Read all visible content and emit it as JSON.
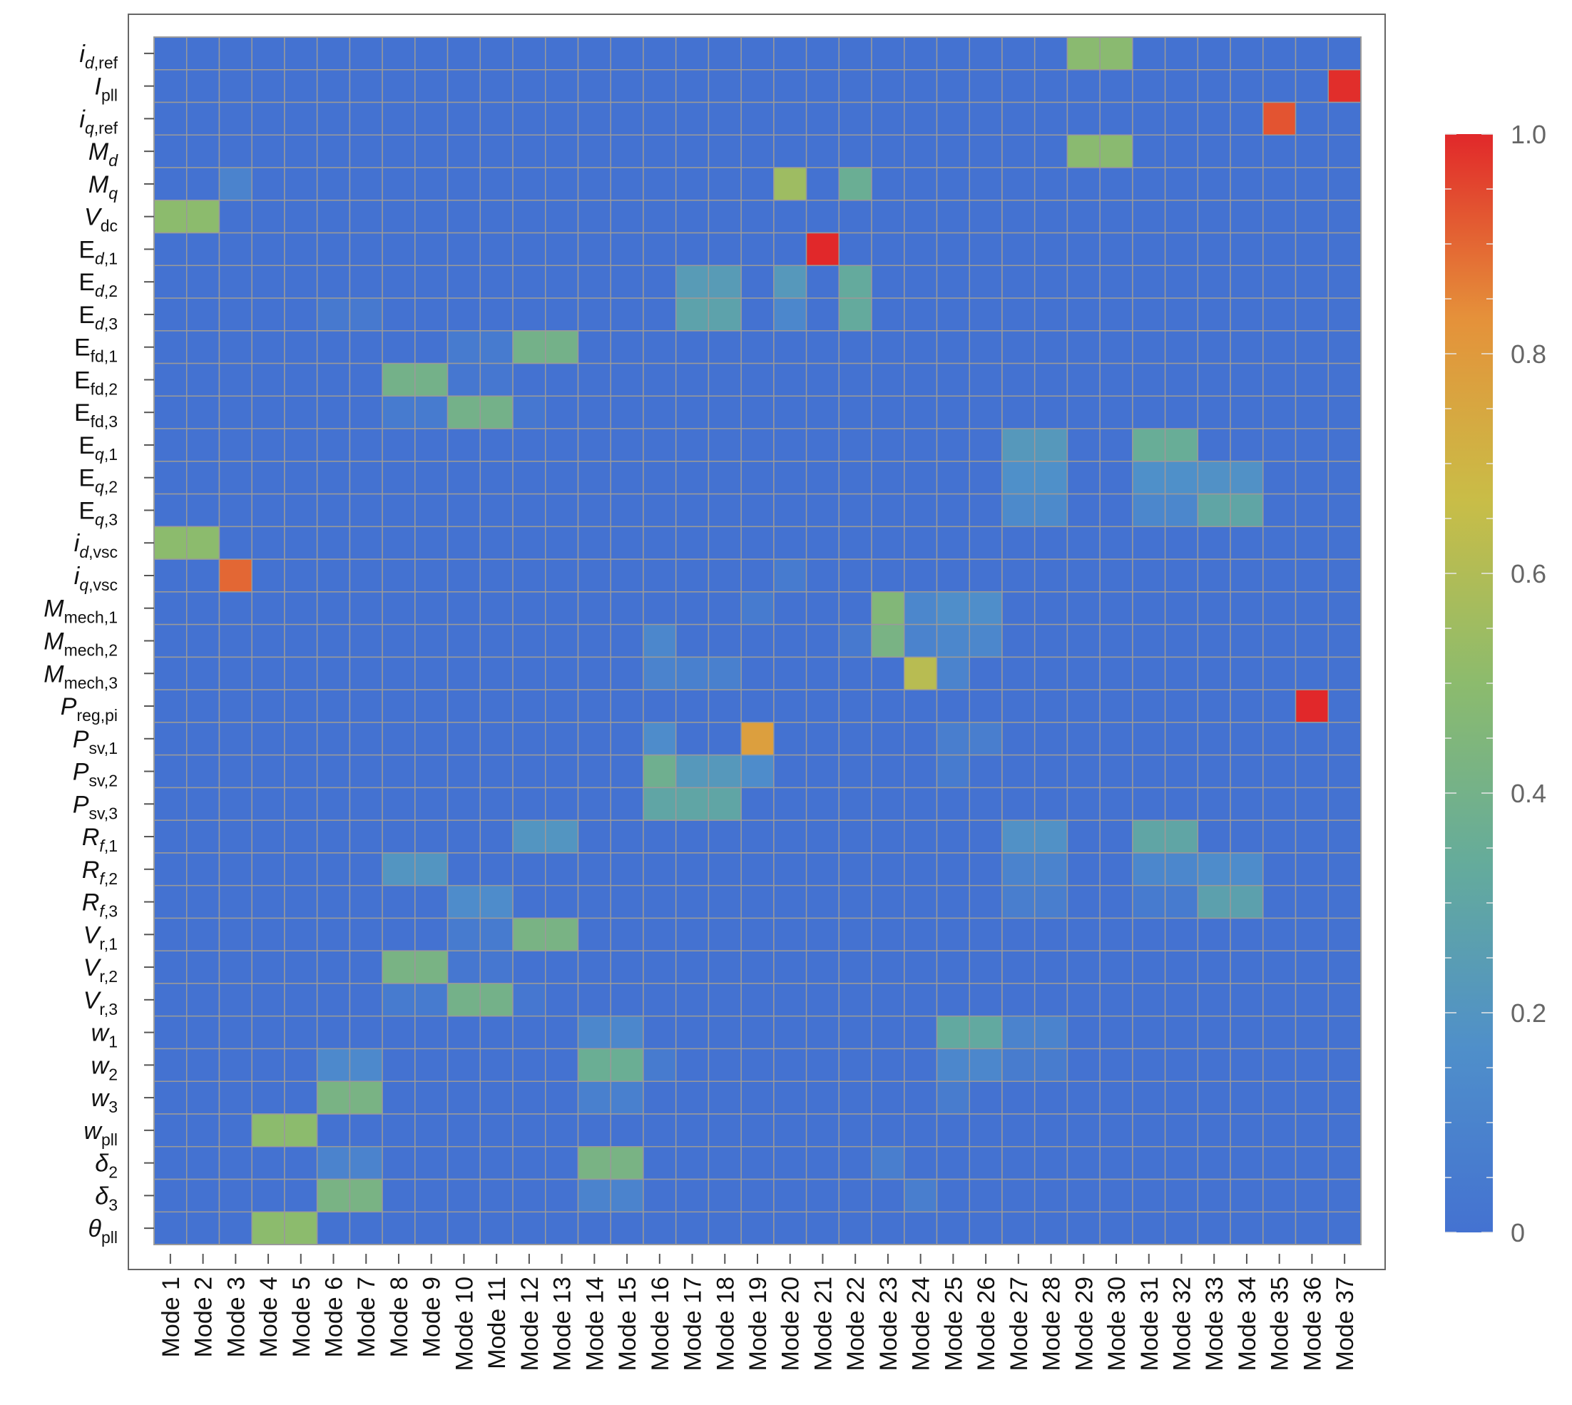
{
  "chart_data": {
    "type": "heatmap",
    "color_scale": {
      "min": 0,
      "max": 1,
      "stops": [
        "#4472d1",
        "#4f8fca",
        "#64ab9c",
        "#8cbb6d",
        "#c9bd47",
        "#e5913a",
        "#e1282a"
      ]
    },
    "colorbar": {
      "ticks": [
        {
          "value": 1.0,
          "label": "1.0"
        },
        {
          "value": 0.8,
          "label": "0.8"
        },
        {
          "value": 0.6,
          "label": "0.6"
        },
        {
          "value": 0.4,
          "label": "0.4"
        },
        {
          "value": 0.2,
          "label": "0.2"
        },
        {
          "value": 0.0,
          "label": "0"
        }
      ]
    },
    "x_categories": [
      "Mode 1",
      "Mode 2",
      "Mode 3",
      "Mode 4",
      "Mode 5",
      "Mode 6",
      "Mode 7",
      "Mode 8",
      "Mode 9",
      "Mode 10",
      "Mode 11",
      "Mode 12",
      "Mode 13",
      "Mode 14",
      "Mode 15",
      "Mode 16",
      "Mode 17",
      "Mode 18",
      "Mode 19",
      "Mode 20",
      "Mode 21",
      "Mode 22",
      "Mode 23",
      "Mode 24",
      "Mode 25",
      "Mode 26",
      "Mode 27",
      "Mode 28",
      "Mode 29",
      "Mode 30",
      "Mode 31",
      "Mode 32",
      "Mode 33",
      "Mode 34",
      "Mode 35",
      "Mode 36",
      "Mode 37"
    ],
    "y_categories": [
      {
        "main": "i",
        "italic": true,
        "sub": [
          {
            "t": "d",
            "i": true
          },
          {
            "t": ",ref",
            "i": false
          }
        ]
      },
      {
        "main": "I",
        "italic": true,
        "sub": [
          {
            "t": "pll",
            "i": false
          }
        ]
      },
      {
        "main": "i",
        "italic": true,
        "sub": [
          {
            "t": "q",
            "i": true
          },
          {
            "t": ",ref",
            "i": false
          }
        ]
      },
      {
        "main": "M",
        "italic": true,
        "sub": [
          {
            "t": "d",
            "i": true
          }
        ]
      },
      {
        "main": "M",
        "italic": true,
        "sub": [
          {
            "t": "q",
            "i": true
          }
        ]
      },
      {
        "main": "V",
        "italic": true,
        "sub": [
          {
            "t": "dc",
            "i": false
          }
        ]
      },
      {
        "main": "E",
        "italic": false,
        "sub": [
          {
            "t": "d",
            "i": true
          },
          {
            "t": ",1",
            "i": false
          }
        ]
      },
      {
        "main": "E",
        "italic": false,
        "sub": [
          {
            "t": "d",
            "i": true
          },
          {
            "t": ",2",
            "i": false
          }
        ]
      },
      {
        "main": "E",
        "italic": false,
        "sub": [
          {
            "t": "d",
            "i": true
          },
          {
            "t": ",3",
            "i": false
          }
        ]
      },
      {
        "main": "E",
        "italic": false,
        "sub": [
          {
            "t": "fd,1",
            "i": false
          }
        ]
      },
      {
        "main": "E",
        "italic": false,
        "sub": [
          {
            "t": "fd,2",
            "i": false
          }
        ]
      },
      {
        "main": "E",
        "italic": false,
        "sub": [
          {
            "t": "fd,3",
            "i": false
          }
        ]
      },
      {
        "main": "E",
        "italic": false,
        "sub": [
          {
            "t": "q",
            "i": true
          },
          {
            "t": ",1",
            "i": false
          }
        ]
      },
      {
        "main": "E",
        "italic": false,
        "sub": [
          {
            "t": "q",
            "i": true
          },
          {
            "t": ",2",
            "i": false
          }
        ]
      },
      {
        "main": "E",
        "italic": false,
        "sub": [
          {
            "t": "q",
            "i": true
          },
          {
            "t": ",3",
            "i": false
          }
        ]
      },
      {
        "main": "i",
        "italic": true,
        "sub": [
          {
            "t": "d",
            "i": true
          },
          {
            "t": ",vsc",
            "i": false
          }
        ]
      },
      {
        "main": "i",
        "italic": true,
        "sub": [
          {
            "t": "q",
            "i": true
          },
          {
            "t": ",vsc",
            "i": false
          }
        ]
      },
      {
        "main": "M",
        "italic": true,
        "sub": [
          {
            "t": "mech,1",
            "i": false
          }
        ]
      },
      {
        "main": "M",
        "italic": true,
        "sub": [
          {
            "t": "mech,2",
            "i": false
          }
        ]
      },
      {
        "main": "M",
        "italic": true,
        "sub": [
          {
            "t": "mech,3",
            "i": false
          }
        ]
      },
      {
        "main": "P",
        "italic": true,
        "sub": [
          {
            "t": "reg,pi",
            "i": false
          }
        ]
      },
      {
        "main": "P",
        "italic": true,
        "sub": [
          {
            "t": "sv,1",
            "i": false
          }
        ]
      },
      {
        "main": "P",
        "italic": true,
        "sub": [
          {
            "t": "sv,2",
            "i": false
          }
        ]
      },
      {
        "main": "P",
        "italic": true,
        "sub": [
          {
            "t": "sv,3",
            "i": false
          }
        ]
      },
      {
        "main": "R",
        "italic": true,
        "sub": [
          {
            "t": "f",
            "i": true
          },
          {
            "t": ",1",
            "i": false
          }
        ]
      },
      {
        "main": "R",
        "italic": true,
        "sub": [
          {
            "t": "f",
            "i": true
          },
          {
            "t": ",2",
            "i": false
          }
        ]
      },
      {
        "main": "R",
        "italic": true,
        "sub": [
          {
            "t": "f",
            "i": true
          },
          {
            "t": ",3",
            "i": false
          }
        ]
      },
      {
        "main": "V",
        "italic": true,
        "sub": [
          {
            "t": "r,1",
            "i": false
          }
        ]
      },
      {
        "main": "V",
        "italic": true,
        "sub": [
          {
            "t": "r,2",
            "i": false
          }
        ]
      },
      {
        "main": "V",
        "italic": true,
        "sub": [
          {
            "t": "r,3",
            "i": false
          }
        ]
      },
      {
        "main": "w",
        "italic": true,
        "sub": [
          {
            "t": "1",
            "i": false
          }
        ]
      },
      {
        "main": "w",
        "italic": true,
        "sub": [
          {
            "t": "2",
            "i": false
          }
        ]
      },
      {
        "main": "w",
        "italic": true,
        "sub": [
          {
            "t": "3",
            "i": false
          }
        ]
      },
      {
        "main": "w",
        "italic": true,
        "sub": [
          {
            "t": "pll",
            "i": false
          }
        ]
      },
      {
        "main": "δ",
        "italic": true,
        "sub": [
          {
            "t": "2",
            "i": false
          }
        ]
      },
      {
        "main": "δ",
        "italic": true,
        "sub": [
          {
            "t": "3",
            "i": false
          }
        ]
      },
      {
        "main": "θ",
        "italic": true,
        "sub": [
          {
            "t": "pll",
            "i": false
          }
        ]
      }
    ],
    "cells": [
      [
        0,
        28,
        0.49
      ],
      [
        0,
        29,
        0.49
      ],
      [
        1,
        36,
        0.99
      ],
      [
        2,
        34,
        0.93
      ],
      [
        3,
        28,
        0.49
      ],
      [
        3,
        29,
        0.49
      ],
      [
        4,
        2,
        0.1
      ],
      [
        4,
        19,
        0.55
      ],
      [
        4,
        21,
        0.36
      ],
      [
        5,
        0,
        0.5
      ],
      [
        5,
        1,
        0.5
      ],
      [
        6,
        20,
        1.0
      ],
      [
        7,
        16,
        0.24
      ],
      [
        7,
        17,
        0.24
      ],
      [
        7,
        19,
        0.22
      ],
      [
        7,
        21,
        0.33
      ],
      [
        8,
        5,
        0.04
      ],
      [
        8,
        6,
        0.04
      ],
      [
        8,
        16,
        0.28
      ],
      [
        8,
        17,
        0.28
      ],
      [
        8,
        19,
        0.12
      ],
      [
        8,
        21,
        0.33
      ],
      [
        9,
        9,
        0.05
      ],
      [
        9,
        10,
        0.05
      ],
      [
        9,
        11,
        0.4
      ],
      [
        9,
        12,
        0.4
      ],
      [
        10,
        7,
        0.4
      ],
      [
        10,
        8,
        0.4
      ],
      [
        10,
        9,
        0.03
      ],
      [
        10,
        10,
        0.03
      ],
      [
        11,
        7,
        0.05
      ],
      [
        11,
        8,
        0.05
      ],
      [
        11,
        9,
        0.4
      ],
      [
        11,
        10,
        0.4
      ],
      [
        11,
        11,
        0.03
      ],
      [
        12,
        26,
        0.22
      ],
      [
        12,
        27,
        0.22
      ],
      [
        12,
        30,
        0.35
      ],
      [
        12,
        31,
        0.35
      ],
      [
        13,
        26,
        0.17
      ],
      [
        13,
        27,
        0.17
      ],
      [
        13,
        30,
        0.17
      ],
      [
        13,
        31,
        0.17
      ],
      [
        13,
        32,
        0.18
      ],
      [
        13,
        33,
        0.18
      ],
      [
        14,
        26,
        0.14
      ],
      [
        14,
        27,
        0.14
      ],
      [
        14,
        30,
        0.12
      ],
      [
        14,
        31,
        0.12
      ],
      [
        14,
        32,
        0.3
      ],
      [
        14,
        33,
        0.3
      ],
      [
        15,
        0,
        0.5
      ],
      [
        15,
        1,
        0.5
      ],
      [
        16,
        2,
        0.9
      ],
      [
        16,
        19,
        0.05
      ],
      [
        17,
        18,
        0.05
      ],
      [
        17,
        22,
        0.46
      ],
      [
        17,
        23,
        0.12
      ],
      [
        17,
        24,
        0.16
      ],
      [
        17,
        25,
        0.16
      ],
      [
        18,
        15,
        0.12
      ],
      [
        18,
        21,
        0.04
      ],
      [
        18,
        22,
        0.42
      ],
      [
        18,
        23,
        0.1
      ],
      [
        18,
        24,
        0.12
      ],
      [
        18,
        25,
        0.12
      ],
      [
        19,
        15,
        0.1
      ],
      [
        19,
        16,
        0.08
      ],
      [
        19,
        17,
        0.08
      ],
      [
        19,
        23,
        0.62
      ],
      [
        19,
        24,
        0.1
      ],
      [
        20,
        35,
        1.0
      ],
      [
        21,
        15,
        0.15
      ],
      [
        21,
        18,
        0.78
      ],
      [
        21,
        24,
        0.07
      ],
      [
        21,
        25,
        0.07
      ],
      [
        22,
        15,
        0.38
      ],
      [
        22,
        16,
        0.22
      ],
      [
        22,
        17,
        0.22
      ],
      [
        22,
        18,
        0.15
      ],
      [
        22,
        24,
        0.05
      ],
      [
        23,
        15,
        0.3
      ],
      [
        23,
        16,
        0.3
      ],
      [
        23,
        17,
        0.3
      ],
      [
        24,
        11,
        0.2
      ],
      [
        24,
        12,
        0.2
      ],
      [
        24,
        26,
        0.18
      ],
      [
        24,
        27,
        0.18
      ],
      [
        24,
        30,
        0.3
      ],
      [
        24,
        31,
        0.3
      ],
      [
        25,
        7,
        0.2
      ],
      [
        25,
        8,
        0.2
      ],
      [
        25,
        26,
        0.1
      ],
      [
        25,
        27,
        0.1
      ],
      [
        25,
        30,
        0.12
      ],
      [
        25,
        31,
        0.12
      ],
      [
        25,
        32,
        0.15
      ],
      [
        25,
        33,
        0.15
      ],
      [
        26,
        9,
        0.15
      ],
      [
        26,
        10,
        0.15
      ],
      [
        26,
        26,
        0.07
      ],
      [
        26,
        27,
        0.07
      ],
      [
        26,
        30,
        0.05
      ],
      [
        26,
        31,
        0.05
      ],
      [
        26,
        32,
        0.27
      ],
      [
        26,
        33,
        0.27
      ],
      [
        27,
        9,
        0.05
      ],
      [
        27,
        10,
        0.05
      ],
      [
        27,
        11,
        0.42
      ],
      [
        27,
        12,
        0.42
      ],
      [
        28,
        7,
        0.42
      ],
      [
        28,
        8,
        0.42
      ],
      [
        28,
        9,
        0.03
      ],
      [
        28,
        10,
        0.03
      ],
      [
        29,
        7,
        0.05
      ],
      [
        29,
        8,
        0.05
      ],
      [
        29,
        9,
        0.4
      ],
      [
        29,
        10,
        0.4
      ],
      [
        29,
        11,
        0.03
      ],
      [
        30,
        13,
        0.12
      ],
      [
        30,
        14,
        0.12
      ],
      [
        30,
        24,
        0.32
      ],
      [
        30,
        25,
        0.32
      ],
      [
        30,
        26,
        0.1
      ],
      [
        30,
        27,
        0.1
      ],
      [
        31,
        5,
        0.13
      ],
      [
        31,
        6,
        0.13
      ],
      [
        31,
        13,
        0.36
      ],
      [
        31,
        14,
        0.36
      ],
      [
        31,
        15,
        0.05
      ],
      [
        31,
        24,
        0.12
      ],
      [
        31,
        25,
        0.12
      ],
      [
        31,
        26,
        0.06
      ],
      [
        31,
        27,
        0.06
      ],
      [
        32,
        5,
        0.42
      ],
      [
        32,
        6,
        0.42
      ],
      [
        32,
        13,
        0.08
      ],
      [
        32,
        14,
        0.08
      ],
      [
        32,
        24,
        0.06
      ],
      [
        33,
        3,
        0.5
      ],
      [
        33,
        4,
        0.5
      ],
      [
        34,
        5,
        0.1
      ],
      [
        34,
        6,
        0.1
      ],
      [
        34,
        13,
        0.42
      ],
      [
        34,
        14,
        0.42
      ],
      [
        34,
        22,
        0.07
      ],
      [
        35,
        5,
        0.42
      ],
      [
        35,
        6,
        0.42
      ],
      [
        35,
        13,
        0.1
      ],
      [
        35,
        14,
        0.1
      ],
      [
        35,
        23,
        0.07
      ],
      [
        36,
        3,
        0.5
      ],
      [
        36,
        4,
        0.5
      ]
    ]
  }
}
